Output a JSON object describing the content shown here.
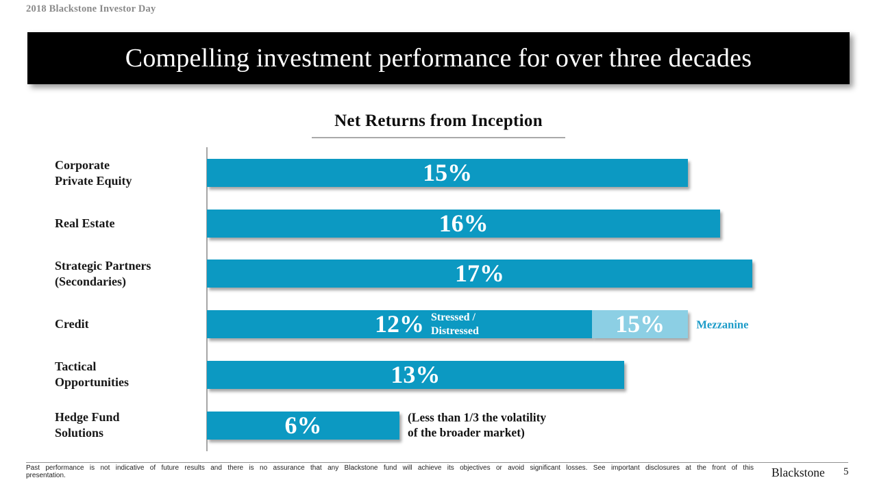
{
  "page": {
    "eyebrow": "2018 Blackstone Investor Day",
    "title": "Compelling investment performance for over three decades",
    "brand": "Blackstone",
    "page_number": "5",
    "footnote_line1": "Past performance is not indicative of future results and there is no assurance that any Blackstone fund will achieve its objectives or avoid significant losses. See important disclosures at the front of this",
    "footnote_line2": "presentation."
  },
  "colors": {
    "banner_bg": "#000000",
    "banner_text": "#ffffff",
    "bar_primary": "#0c99c2",
    "bar_secondary": "#8ccfe4",
    "accent_text": "#1b9bc8"
  },
  "chart_data": {
    "type": "bar",
    "orientation": "horizontal",
    "title": "Net Returns from Inception",
    "value_unit": "%",
    "xlim": [
      0,
      17
    ],
    "grid": false,
    "legend": false,
    "rows": [
      {
        "category": "Corporate\nPrivate Equity",
        "segments": [
          {
            "series": "Net return",
            "value": 15,
            "label": "15%",
            "style": "primary"
          }
        ]
      },
      {
        "category": "Real Estate",
        "segments": [
          {
            "series": "Net return",
            "value": 16,
            "label": "16%",
            "style": "primary"
          }
        ]
      },
      {
        "category": "Strategic Partners\n(Secondaries)",
        "segments": [
          {
            "series": "Net return",
            "value": 17,
            "label": "17%",
            "style": "primary"
          }
        ]
      },
      {
        "category": "Credit",
        "segments": [
          {
            "series": "Stressed / Distressed",
            "value": 12,
            "label": "12%",
            "style": "primary",
            "note_inside": "Stressed /\nDistressed"
          },
          {
            "series": "Mezzanine",
            "value": 15,
            "draw_from": 12,
            "label": "15%",
            "style": "secondary",
            "note_right": "Mezzanine",
            "note_right_style": "accent"
          }
        ]
      },
      {
        "category": "Tactical\nOpportunities",
        "segments": [
          {
            "series": "Net return",
            "value": 13,
            "label": "13%",
            "style": "primary"
          }
        ]
      },
      {
        "category": "Hedge Fund\nSolutions",
        "segments": [
          {
            "series": "Net return",
            "value": 6,
            "label": "6%",
            "style": "primary",
            "note_right": "(Less than 1/3 the volatility\nof the broader market)",
            "note_right_style": "dark"
          }
        ]
      }
    ]
  }
}
